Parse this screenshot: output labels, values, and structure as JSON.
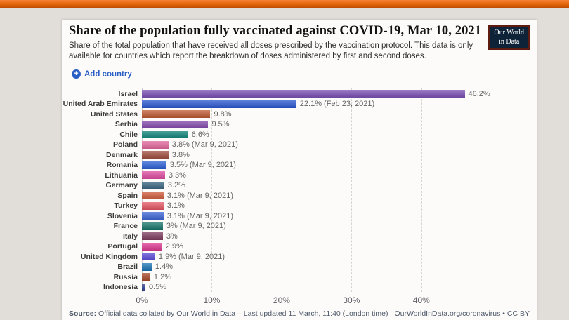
{
  "header": {
    "title": "Share of the population fully vaccinated against COVID-19, Mar 10, 2021",
    "subtitle": "Share of the total population that have received all doses prescribed by the vaccination protocol. This data is only available for countries which report the breakdown of doses administered by first and second doses.",
    "logo": {
      "line1": "Our World",
      "line2": "in Data"
    }
  },
  "controls": {
    "add_country_label": "Add country",
    "plus_icon": "+",
    "accent_color": "#2a5ec4"
  },
  "chart_data": {
    "type": "bar",
    "orientation": "horizontal",
    "title": "Share of the population fully vaccinated against COVID-19, Mar 10, 2021",
    "categories": [
      "Israel",
      "United Arab Emirates",
      "United States",
      "Serbia",
      "Chile",
      "Poland",
      "Denmark",
      "Romania",
      "Lithuania",
      "Germany",
      "Spain",
      "Turkey",
      "Slovenia",
      "France",
      "Italy",
      "Portugal",
      "United Kingdom",
      "Brazil",
      "Russia",
      "Indonesia"
    ],
    "values": [
      46.2,
      22.1,
      9.8,
      9.5,
      6.6,
      3.8,
      3.8,
      3.5,
      3.3,
      3.2,
      3.1,
      3.1,
      3.1,
      3,
      3,
      2.9,
      1.9,
      1.4,
      1.2,
      0.5
    ],
    "value_labels": [
      "46.2%",
      "22.1% (Feb 23, 2021)",
      "9.8%",
      "9.5%",
      "6.6%",
      "3.8% (Mar 9, 2021)",
      "3.8%",
      "3.5% (Mar 9, 2021)",
      "3.3%",
      "3.2%",
      "3.1% (Mar 9, 2021)",
      "3.1%",
      "3.1% (Mar 9, 2021)",
      "3% (Mar 9, 2021)",
      "3%",
      "2.9%",
      "1.9% (Mar 9, 2021)",
      "1.4%",
      "1.2%",
      "0.5%"
    ],
    "colors": [
      "#7b50b4",
      "#2a57d0",
      "#bf5a32",
      "#8349ad",
      "#12877d",
      "#e2679c",
      "#a0503e",
      "#2a5fd3",
      "#dd4b9f",
      "#36647f",
      "#d05c3d",
      "#e35663",
      "#3d66d5",
      "#16746a",
      "#7d3c5e",
      "#de3a92",
      "#5a4bd7",
      "#1a73b4",
      "#a94a28",
      "#2c3e8c"
    ],
    "x_ticks": [
      0,
      10,
      20,
      30,
      40
    ],
    "x_tick_labels": [
      "0%",
      "10%",
      "20%",
      "30%",
      "40%"
    ],
    "xlim": [
      0,
      55.5
    ],
    "ylabel": "",
    "xlabel": "",
    "grid": "dashed-vertical",
    "legend": "none"
  },
  "footer": {
    "source_prefix": "Source:",
    "source_text": " Official data collated by Our World in Data – Last updated 11 March, 11:40 (London time)",
    "license": "OurWorldInData.org/coronavirus • CC BY"
  }
}
